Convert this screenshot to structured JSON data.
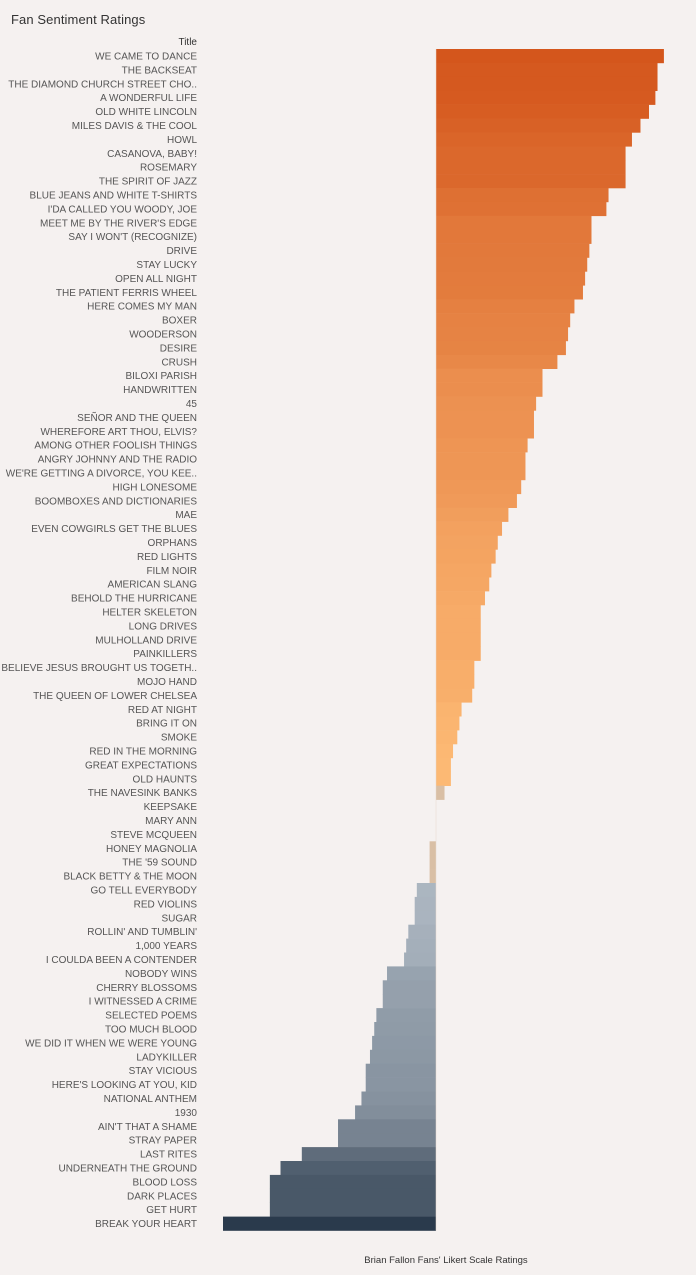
{
  "page_title": "Fan Sentiment Ratings",
  "column_header": "Title",
  "chart_data": {
    "type": "bar",
    "orientation": "horizontal",
    "title": "Fan Sentiment Ratings",
    "xlabel": "Brian Fallon Fans' Likert Scale Ratings",
    "ylabel": "Title",
    "grid": false,
    "xlim": [
      -1.0,
      1.07
    ],
    "categories": [
      "WE CAME TO DANCE",
      "THE BACKSEAT",
      "THE DIAMOND CHURCH STREET CHO..",
      "A WONDERFUL LIFE",
      "OLD WHITE LINCOLN",
      "MILES DAVIS & THE COOL",
      "HOWL",
      "CASANOVA, BABY!",
      "ROSEMARY",
      "THE SPIRIT OF JAZZ",
      "BLUE JEANS AND WHITE T-SHIRTS",
      "I'DA CALLED YOU WOODY, JOE",
      "MEET ME BY THE RIVER'S EDGE",
      "SAY I WON'T (RECOGNIZE)",
      "DRIVE",
      "STAY LUCKY",
      "OPEN ALL NIGHT",
      "THE PATIENT FERRIS WHEEL",
      "HERE COMES MY MAN",
      "BOXER",
      "WOODERSON",
      "DESIRE",
      "CRUSH",
      "BILOXI PARISH",
      "HANDWRITTEN",
      "45",
      "SEÑOR AND THE QUEEN",
      "WHEREFORE ART THOU, ELVIS?",
      "AMONG OTHER FOOLISH THINGS",
      "ANGRY JOHNNY AND THE RADIO",
      "WE'RE GETTING A DIVORCE, YOU KEE..",
      "HIGH LONESOME",
      "BOOMBOXES AND DICTIONARIES",
      "MAE",
      "EVEN COWGIRLS GET THE BLUES",
      "ORPHANS",
      "RED LIGHTS",
      "FILM NOIR",
      "AMERICAN SLANG",
      "BEHOLD THE HURRICANE",
      "HELTER SKELETON",
      "LONG DRIVES",
      "MULHOLLAND DRIVE",
      "PAINKILLERS",
      "I BELIEVE JESUS BROUGHT US TOGETH..",
      "MOJO HAND",
      "THE QUEEN OF LOWER CHELSEA",
      "RED AT NIGHT",
      "BRING IT ON",
      "SMOKE",
      "RED IN THE MORNING",
      "GREAT EXPECTATIONS",
      "OLD HAUNTS",
      "THE NAVESINK BANKS",
      "KEEPSAKE",
      "MARY ANN",
      "STEVE MCQUEEN",
      "HONEY MAGNOLIA",
      "THE '59 SOUND",
      "BLACK BETTY & THE MOON",
      "GO TELL EVERYBODY",
      "RED VIOLINS",
      "SUGAR",
      "ROLLIN' AND TUMBLIN'",
      "1,000 YEARS",
      "I COULDA BEEN A CONTENDER",
      "NOBODY WINS",
      "CHERRY BLOSSOMS",
      "I WITNESSED A CRIME",
      "SELECTED POEMS",
      "TOO MUCH BLOOD",
      "WE DID IT WHEN WE WERE YOUNG",
      "LADYKILLER",
      "STAY VICIOUS",
      "HERE'S LOOKING AT YOU, KID",
      "NATIONAL ANTHEM",
      "1930",
      "AIN'T THAT A SHAME",
      "STRAY PAPER",
      "LAST RITES",
      "UNDERNEATH THE GROUND",
      "BLOOD LOSS",
      "DARK PLACES",
      "GET HURT",
      "BREAK YOUR HEART"
    ],
    "values": [
      1.07,
      1.04,
      1.04,
      1.03,
      1.0,
      0.96,
      0.92,
      0.89,
      0.89,
      0.89,
      0.81,
      0.8,
      0.73,
      0.73,
      0.72,
      0.71,
      0.7,
      0.69,
      0.65,
      0.63,
      0.62,
      0.61,
      0.57,
      0.5,
      0.5,
      0.47,
      0.46,
      0.46,
      0.43,
      0.42,
      0.42,
      0.4,
      0.38,
      0.34,
      0.31,
      0.29,
      0.28,
      0.26,
      0.25,
      0.23,
      0.21,
      0.21,
      0.21,
      0.21,
      0.18,
      0.18,
      0.17,
      0.12,
      0.11,
      0.1,
      0.08,
      0.07,
      0.07,
      0.04,
      0.0,
      0.0,
      0.0,
      -0.03,
      -0.03,
      -0.03,
      -0.09,
      -0.1,
      -0.1,
      -0.13,
      -0.14,
      -0.15,
      -0.23,
      -0.25,
      -0.25,
      -0.28,
      -0.29,
      -0.3,
      -0.31,
      -0.33,
      -0.33,
      -0.35,
      -0.38,
      -0.46,
      -0.46,
      -0.63,
      -0.73,
      -0.78,
      -0.78,
      -0.78,
      -1.0
    ],
    "colors": {
      "positive_high": "#d4561c",
      "positive_low": "#ffc07a",
      "neutral": "#d9bfa5",
      "negative_low": "#b8c2cc",
      "negative_high": "#2a3a4c"
    }
  }
}
